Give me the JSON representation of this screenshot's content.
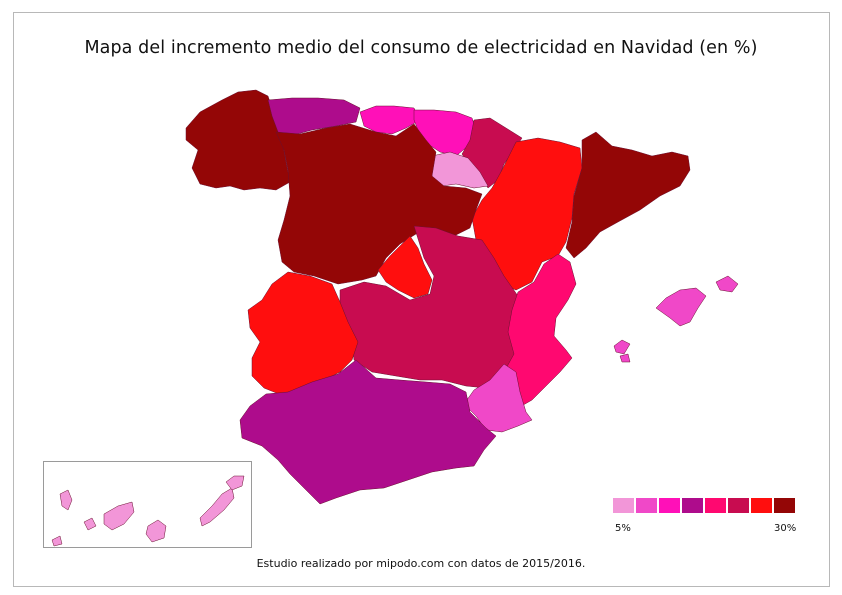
{
  "title": "Mapa del incremento medio del consumo de electricidad en Navidad (en %)",
  "footer": "Estudio realizado por mipodo.com con datos de 2015/2016.",
  "legend": {
    "min_label": "5%",
    "max_label": "30%",
    "colors": [
      "#f296d8",
      "#f048c8",
      "#ff10b8",
      "#ae0c8c",
      "#ff0870",
      "#c80c50",
      "#ff0e0e",
      "#940606"
    ]
  },
  "regions": [
    {
      "name": "Galicia",
      "level": 8
    },
    {
      "name": "Asturias",
      "level": 4
    },
    {
      "name": "Cantabria",
      "level": 3
    },
    {
      "name": "País Vasco",
      "level": 3
    },
    {
      "name": "Navarra",
      "level": 6
    },
    {
      "name": "La Rioja",
      "level": 1
    },
    {
      "name": "Aragón",
      "level": 7
    },
    {
      "name": "Cataluña",
      "level": 8
    },
    {
      "name": "Castilla y León",
      "level": 8
    },
    {
      "name": "Madrid",
      "level": 7
    },
    {
      "name": "Castilla-La Mancha",
      "level": 6
    },
    {
      "name": "Extremadura",
      "level": 7
    },
    {
      "name": "Comunidad Valenciana",
      "level": 5
    },
    {
      "name": "Murcia",
      "level": 2
    },
    {
      "name": "Andalucía",
      "level": 4
    },
    {
      "name": "Islas Baleares",
      "level": 2
    },
    {
      "name": "Islas Canarias",
      "level": 1
    }
  ]
}
